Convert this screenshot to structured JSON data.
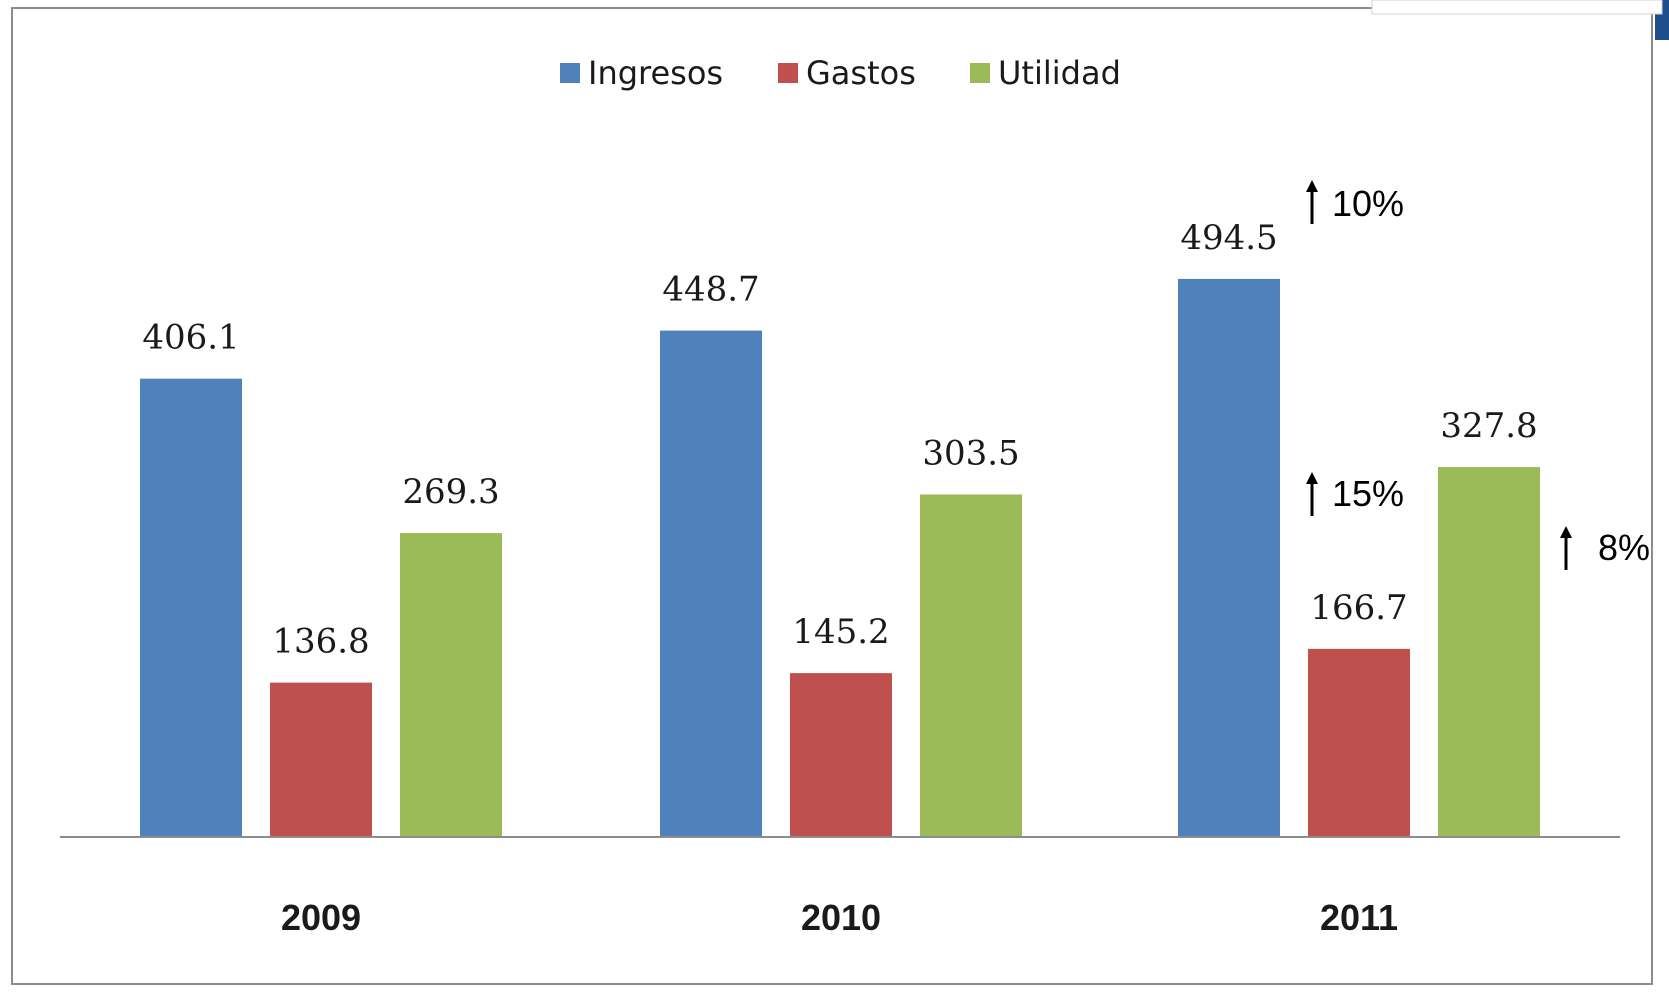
{
  "chart_data": {
    "type": "bar",
    "categories": [
      "2009",
      "2010",
      "2011"
    ],
    "series": [
      {
        "name": "Ingresos",
        "color": "#4F81BD",
        "values": [
          406.1,
          448.7,
          494.5
        ]
      },
      {
        "name": "Gastos",
        "color": "#C0504D",
        "values": [
          136.8,
          145.2,
          166.7
        ]
      },
      {
        "name": "Utilidad",
        "color": "#9BBB59",
        "values": [
          269.3,
          303.5,
          327.8
        ]
      }
    ],
    "value_labels": {
      "Ingresos": [
        "406.1",
        "448.7",
        "494.5"
      ],
      "Gastos": [
        "136.8",
        "145.2",
        "166.7"
      ],
      "Utilidad": [
        "269.3",
        "303.5",
        "327.8"
      ]
    },
    "ylim": [
      0,
      560
    ],
    "grid": false,
    "legend_position": "top-center",
    "annotations": [
      {
        "text": "10%",
        "series": "Ingresos",
        "category": "2011",
        "arrow": "up"
      },
      {
        "text": "15%",
        "series": "Gastos",
        "category": "2011",
        "arrow": "up"
      },
      {
        "text": "8%",
        "series": "Utilidad",
        "category": "2011",
        "arrow": "up"
      }
    ]
  }
}
